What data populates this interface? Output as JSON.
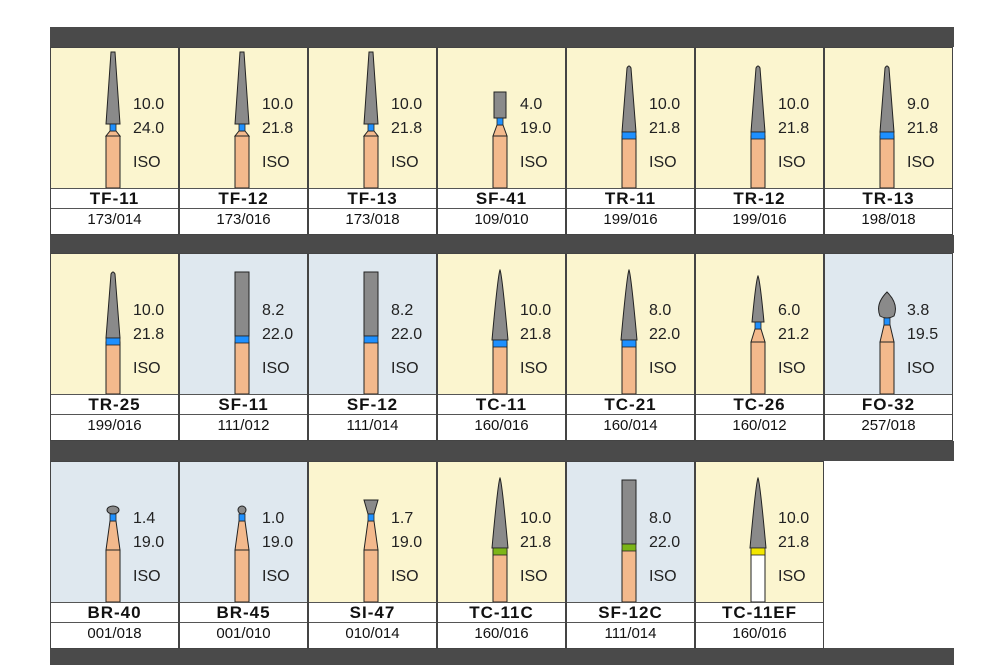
{
  "rows": [
    {
      "cards": [
        {
          "name": "TF-11",
          "code": "173/014",
          "v1": "10.0",
          "v2": "24.0",
          "iso": "ISO",
          "bg": "yellow",
          "shape": "taper",
          "band": "#1e90ff",
          "shank": "gold"
        },
        {
          "name": "TF-12",
          "code": "173/016",
          "v1": "10.0",
          "v2": "21.8",
          "iso": "ISO",
          "bg": "yellow",
          "shape": "taper",
          "band": "#1e90ff",
          "shank": "gold"
        },
        {
          "name": "TF-13",
          "code": "173/018",
          "v1": "10.0",
          "v2": "21.8",
          "iso": "ISO",
          "bg": "yellow",
          "shape": "taper",
          "band": "#1e90ff",
          "shank": "gold"
        },
        {
          "name": "SF-41",
          "code": "109/010",
          "v1": "4.0",
          "v2": "19.0",
          "iso": "ISO",
          "bg": "yellow",
          "shape": "cyl-short",
          "band": "#1e90ff",
          "shank": "gold"
        },
        {
          "name": "TR-11",
          "code": "199/016",
          "v1": "10.0",
          "v2": "21.8",
          "iso": "ISO",
          "bg": "yellow",
          "shape": "round-taper",
          "band": "#1e90ff",
          "shank": "gold"
        },
        {
          "name": "TR-12",
          "code": "199/016",
          "v1": "10.0",
          "v2": "21.8",
          "iso": "ISO",
          "bg": "yellow",
          "shape": "round-taper",
          "band": "#1e90ff",
          "shank": "gold"
        },
        {
          "name": "TR-13",
          "code": "198/018",
          "v1": "9.0",
          "v2": "21.8",
          "iso": "ISO",
          "bg": "yellow",
          "shape": "round-taper",
          "band": "#1e90ff",
          "shank": "gold"
        }
      ]
    },
    {
      "cards": [
        {
          "name": "TR-25",
          "code": "199/016",
          "v1": "10.0",
          "v2": "21.8",
          "iso": "ISO",
          "bg": "yellow",
          "shape": "round-taper",
          "band": "#1e90ff",
          "shank": "gold"
        },
        {
          "name": "SF-11",
          "code": "111/012",
          "v1": "8.2",
          "v2": "22.0",
          "iso": "ISO",
          "bg": "blue",
          "shape": "cyl",
          "band": "#1e90ff",
          "shank": "gold"
        },
        {
          "name": "SF-12",
          "code": "111/014",
          "v1": "8.2",
          "v2": "22.0",
          "iso": "ISO",
          "bg": "blue",
          "shape": "cyl",
          "band": "#1e90ff",
          "shank": "gold"
        },
        {
          "name": "TC-11",
          "code": "160/016",
          "v1": "10.0",
          "v2": "21.8",
          "iso": "ISO",
          "bg": "yellow",
          "shape": "point",
          "band": "#1e90ff",
          "shank": "gold"
        },
        {
          "name": "TC-21",
          "code": "160/014",
          "v1": "8.0",
          "v2": "22.0",
          "iso": "ISO",
          "bg": "yellow",
          "shape": "point",
          "band": "#1e90ff",
          "shank": "gold"
        },
        {
          "name": "TC-26",
          "code": "160/012",
          "v1": "6.0",
          "v2": "21.2",
          "iso": "ISO",
          "bg": "yellow",
          "shape": "point-small",
          "band": "#1e90ff",
          "shank": "gold"
        },
        {
          "name": "FO-32",
          "code": "257/018",
          "v1": "3.8",
          "v2": "19.5",
          "iso": "ISO",
          "bg": "blue",
          "shape": "flame",
          "band": "#1e90ff",
          "shank": "gold"
        }
      ]
    },
    {
      "cards": [
        {
          "name": "BR-40",
          "code": "001/018",
          "v1": "1.4",
          "v2": "19.0",
          "iso": "ISO",
          "bg": "blue",
          "shape": "ball",
          "band": "#1e90ff",
          "shank": "gold"
        },
        {
          "name": "BR-45",
          "code": "001/010",
          "v1": "1.0",
          "v2": "19.0",
          "iso": "ISO",
          "bg": "blue",
          "shape": "ball-small",
          "band": "#1e90ff",
          "shank": "gold"
        },
        {
          "name": "SI-47",
          "code": "010/014",
          "v1": "1.7",
          "v2": "19.0",
          "iso": "ISO",
          "bg": "yellow",
          "shape": "inverted",
          "band": "#1e90ff",
          "shank": "gold"
        },
        {
          "name": "TC-11C",
          "code": "160/016",
          "v1": "10.0",
          "v2": "21.8",
          "iso": "ISO",
          "bg": "yellow",
          "shape": "point",
          "band": "#7cb518",
          "shank": "gold"
        },
        {
          "name": "SF-12C",
          "code": "111/014",
          "v1": "8.0",
          "v2": "22.0",
          "iso": "ISO",
          "bg": "blue",
          "shape": "cyl",
          "band": "#7cb518",
          "shank": "gold"
        },
        {
          "name": "TC-11EF",
          "code": "160/016",
          "v1": "10.0",
          "v2": "21.8",
          "iso": "ISO",
          "bg": "yellow",
          "shape": "point",
          "band": "#f2e600",
          "shank": "white"
        }
      ]
    }
  ],
  "colors": {
    "band_blue": "#1e90ff",
    "band_green": "#7cb518",
    "band_yellow": "#f2e600",
    "shank_gold": "#f3b98c",
    "head_gray": "#8a8a8a",
    "bg_yellow": "#fbf5cf",
    "bg_blue": "#dfe8ef"
  }
}
